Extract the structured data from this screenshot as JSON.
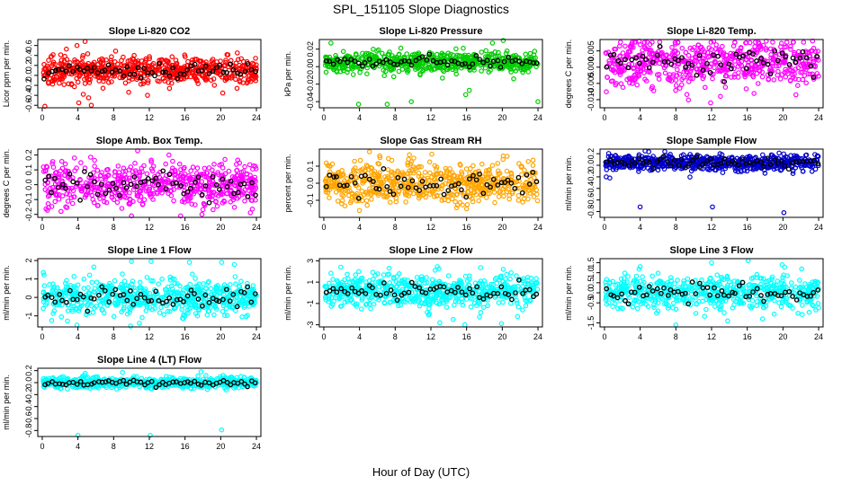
{
  "figure": {
    "title": "SPL_151105  Slope Diagnostics",
    "xlabel": "Hour of Day (UTC)"
  },
  "chart_data": [
    {
      "type": "scatter",
      "title": "Slope Li-820 CO2",
      "ylabel": "Licor ppm per min.",
      "xticks": [
        0,
        4,
        8,
        12,
        16,
        20,
        24
      ],
      "yticks": [
        -0.6,
        -0.4,
        -0.2,
        0.0,
        0.2,
        0.4,
        0.6
      ],
      "ytick_labels": [
        "-0.6",
        "-0.4",
        "-0.2",
        "0.0",
        "0.2",
        "0.4",
        "0.6"
      ],
      "xlim": [
        -0.5,
        24.5
      ],
      "ylim": [
        -0.65,
        0.72
      ],
      "color": "#ff0000",
      "spread": 0.13,
      "center": 0.1,
      "outliers": [
        [
          4.8,
          0.68
        ],
        [
          3.9,
          0.6
        ],
        [
          0.3,
          -0.62
        ],
        [
          4.1,
          -0.55
        ],
        [
          5.2,
          -0.45
        ],
        [
          5.5,
          -0.6
        ],
        [
          4.6,
          -0.38
        ],
        [
          11.8,
          -0.4
        ]
      ]
    },
    {
      "type": "scatter",
      "title": "Slope Li-820 Pressure",
      "ylabel": "kPa per min.",
      "xticks": [
        0,
        4,
        8,
        12,
        16,
        20,
        24
      ],
      "yticks": [
        -0.04,
        -0.02,
        0.0,
        0.02
      ],
      "ytick_labels": [
        "-0.04",
        "-0.02",
        "0.00",
        "0.02"
      ],
      "xlim": [
        -0.5,
        24.5
      ],
      "ylim": [
        -0.047,
        0.031
      ],
      "color": "#00cc00",
      "spread": 0.006,
      "center": 0.005,
      "outliers": [
        [
          0.8,
          0.027
        ],
        [
          3.9,
          -0.043
        ],
        [
          7.1,
          -0.043
        ],
        [
          9.8,
          -0.04
        ],
        [
          15.9,
          -0.032
        ],
        [
          16.3,
          -0.027
        ],
        [
          24.0,
          -0.04
        ],
        [
          20.1,
          0.03
        ],
        [
          18.9,
          0.027
        ]
      ]
    },
    {
      "type": "scatter",
      "title": "Slope Li-820 Temp.",
      "ylabel": "degrees C per min.",
      "xticks": [
        0,
        4,
        8,
        12,
        16,
        20,
        24
      ],
      "yticks": [
        -0.01,
        -0.005,
        0.0,
        0.005
      ],
      "ytick_labels": [
        "-0.010",
        "-0.005",
        "0.000",
        "0.005"
      ],
      "xlim": [
        -0.5,
        24.5
      ],
      "ylim": [
        -0.0125,
        0.0085
      ],
      "color": "#ff00ff",
      "spread": 0.0035,
      "center": 0.0015,
      "outliers": [
        [
          3.9,
          0.008
        ],
        [
          5.1,
          0.007
        ],
        [
          11.9,
          -0.011
        ],
        [
          13.0,
          -0.009
        ],
        [
          15.9,
          0.0075
        ],
        [
          17.5,
          0.0055
        ]
      ]
    },
    {
      "type": "scatter",
      "title": "Slope Amb. Box Temp.",
      "ylabel": "degrees C per min.",
      "xticks": [
        0,
        4,
        8,
        12,
        16,
        20,
        24
      ],
      "yticks": [
        -0.2,
        -0.1,
        0.0,
        0.1,
        0.2
      ],
      "ytick_labels": [
        "-0.2",
        "-0.1",
        "0.0",
        "0.1",
        "0.2"
      ],
      "xlim": [
        -0.5,
        24.5
      ],
      "ylim": [
        -0.22,
        0.24
      ],
      "color": "#ff00ff",
      "spread": 0.07,
      "center": 0.0,
      "outliers": [
        [
          10.0,
          -0.21
        ],
        [
          3.6,
          0.18
        ],
        [
          14.2,
          0.2
        ],
        [
          2.1,
          -0.18
        ],
        [
          17.9,
          -0.2
        ]
      ]
    },
    {
      "type": "scatter",
      "title": "Slope Gas Stream RH",
      "ylabel": "percent per min.",
      "xticks": [
        0,
        4,
        8,
        12,
        16,
        20,
        24
      ],
      "yticks": [
        -0.1,
        0.0,
        0.1
      ],
      "ytick_labels": [
        "-0.1",
        "0.0",
        "0.1"
      ],
      "xlim": [
        -0.5,
        24.5
      ],
      "ylim": [
        -0.2,
        0.2
      ],
      "color": "#ffa500",
      "spread": 0.06,
      "center": 0.0,
      "outliers": [
        [
          2.0,
          -0.12
        ],
        [
          4.0,
          -0.16
        ],
        [
          12.1,
          0.17
        ],
        [
          16.0,
          -0.15
        ],
        [
          20.1,
          0.16
        ],
        [
          6.3,
          0.15
        ]
      ]
    },
    {
      "type": "scatter",
      "title": "Slope Sample Flow",
      "ylabel": "ml/min per min.",
      "xticks": [
        0,
        4,
        8,
        12,
        16,
        20,
        24
      ],
      "yticks": [
        -0.8,
        -0.6,
        -0.4,
        -0.2,
        0.0,
        0.2
      ],
      "ytick_labels": [
        "-0.8",
        "-0.6",
        "-0.4",
        "-0.2",
        "0.0",
        "0.2"
      ],
      "xlim": [
        -0.5,
        24.5
      ],
      "ylim": [
        -0.9,
        0.28
      ],
      "color": "#0000cc",
      "spread": 0.07,
      "center": 0.05,
      "outliers": [
        [
          4.0,
          -0.72
        ],
        [
          12.1,
          -0.72
        ],
        [
          20.1,
          -0.82
        ],
        [
          0.2,
          -0.2
        ],
        [
          0.6,
          -0.22
        ]
      ]
    },
    {
      "type": "scatter",
      "title": "Slope Line 1 Flow",
      "ylabel": "ml/min per min.",
      "xticks": [
        0,
        4,
        8,
        12,
        16,
        20,
        24
      ],
      "yticks": [
        -1,
        0,
        1,
        2
      ],
      "ytick_labels": [
        "-1",
        "0",
        "1",
        "2"
      ],
      "xlim": [
        -0.5,
        24.5
      ],
      "ylim": [
        -1.6,
        2.1
      ],
      "color": "#00ffff",
      "spread": 0.45,
      "center": 0.0,
      "outliers": [
        [
          12.2,
          1.95
        ],
        [
          10.0,
          1.95
        ],
        [
          20.1,
          1.9
        ],
        [
          3.9,
          -1.5
        ],
        [
          9.9,
          -1.55
        ],
        [
          16.5,
          1.9
        ]
      ]
    },
    {
      "type": "scatter",
      "title": "Slope Line 2 Flow",
      "ylabel": "ml/min per min.",
      "xticks": [
        0,
        4,
        8,
        12,
        16,
        20,
        24
      ],
      "yticks": [
        -3,
        -1,
        1,
        3
      ],
      "ytick_labels": [
        "-3",
        "-1",
        "1",
        "3"
      ],
      "xlim": [
        -0.5,
        24.5
      ],
      "ylim": [
        -3.2,
        3.2
      ],
      "color": "#00ffff",
      "spread": 0.75,
      "center": 0.2,
      "outliers": [
        [
          13.0,
          -2.8
        ],
        [
          14.5,
          -2.5
        ],
        [
          15.8,
          -3.0
        ],
        [
          19.9,
          -2.9
        ],
        [
          1.9,
          2.4
        ],
        [
          20.1,
          2.2
        ]
      ]
    },
    {
      "type": "scatter",
      "title": "Slope Line 3 Flow",
      "ylabel": "ml/min per min.",
      "xticks": [
        0,
        4,
        8,
        12,
        16,
        20,
        24
      ],
      "yticks": [
        -1.5,
        -0.5,
        0.0,
        0.5,
        1.0,
        1.5
      ],
      "ytick_labels": [
        "-1.5",
        "-0.5",
        "0.0",
        "0.5",
        "1.0",
        "1.5"
      ],
      "xlim": [
        -0.5,
        24.5
      ],
      "ylim": [
        -1.7,
        1.7
      ],
      "color": "#00ffff",
      "spread": 0.42,
      "center": 0.0,
      "outliers": [
        [
          8.0,
          -1.6
        ],
        [
          16.1,
          1.6
        ],
        [
          12.0,
          1.5
        ],
        [
          13.8,
          -1.4
        ],
        [
          19.9,
          1.4
        ],
        [
          4.0,
          1.3
        ]
      ]
    },
    {
      "type": "scatter",
      "title": "Slope Line 4 (LT) Flow",
      "ylabel": "ml/min per min.",
      "xticks": [
        0,
        4,
        8,
        12,
        16,
        20,
        24
      ],
      "yticks": [
        -0.8,
        -0.6,
        -0.4,
        -0.2,
        0.0,
        0.2
      ],
      "ytick_labels": [
        "-0.8",
        "-0.6",
        "-0.4",
        "-0.2",
        "0.0",
        "0.2"
      ],
      "xlim": [
        -0.5,
        24.5
      ],
      "ylim": [
        -0.9,
        0.24
      ],
      "color": "#00ffff",
      "spread": 0.045,
      "center": 0.0,
      "outliers": [
        [
          4.0,
          -0.88
        ],
        [
          12.1,
          -0.88
        ],
        [
          20.1,
          -0.79
        ],
        [
          17.8,
          0.18
        ],
        [
          9.0,
          0.17
        ]
      ]
    }
  ]
}
